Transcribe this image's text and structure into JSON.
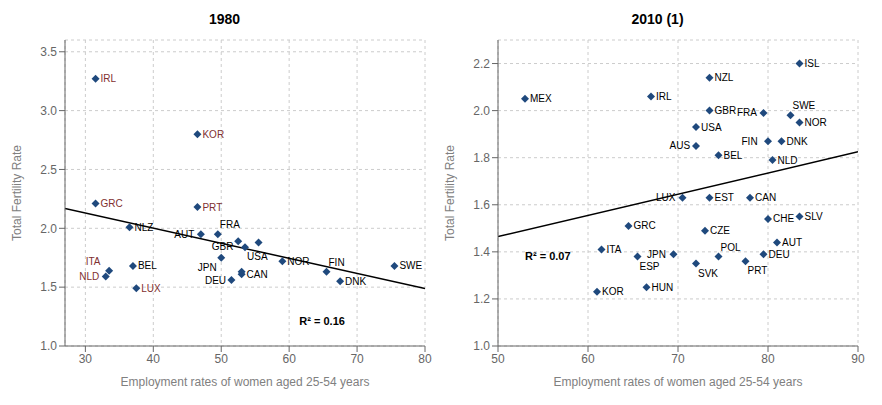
{
  "chart_data": [
    {
      "type": "scatter",
      "title": "1980",
      "x_label": "Employment rates of women aged 25-54 years",
      "y_label": "Total Fertility Rate",
      "xlim": [
        27,
        80
      ],
      "ylim": [
        1.0,
        3.6
      ],
      "xticks": [
        30,
        40,
        50,
        60,
        70,
        80
      ],
      "yticks": [
        {
          "value": 1.0,
          "label": "1.0"
        },
        1.5,
        {
          "value": 2.0,
          "label": "2.0"
        },
        2.5,
        {
          "value": 3.0,
          "label": "3.0"
        },
        3.5
      ],
      "grid": true,
      "color": "#1f497d",
      "marker": "diamond",
      "x": [
        31.5,
        46.5,
        31.5,
        36.5,
        46.5,
        37.0,
        33.5,
        33.0,
        37.5,
        47.0,
        49.5,
        52.5,
        53.5,
        50.0,
        53.0,
        51.5,
        59.0,
        65.5,
        67.5,
        75.5,
        55.5,
        53.0
      ],
      "values": [
        3.27,
        2.8,
        2.21,
        2.01,
        2.18,
        1.68,
        1.64,
        1.59,
        1.49,
        1.95,
        1.95,
        1.89,
        1.84,
        1.75,
        1.61,
        1.56,
        1.72,
        1.63,
        1.55,
        1.68,
        1.88,
        1.63
      ],
      "point_labels": [
        "IRL",
        "KOR",
        "GRC",
        "NLZ",
        "PRT",
        "BEL",
        "ITA",
        "NLD",
        "LUX",
        "AUT",
        "FRA",
        "GBR",
        "USA",
        "JPN",
        "CAN",
        "DEU",
        "NOR",
        "FIN",
        "DNK",
        "SWE",
        null,
        null
      ],
      "label_colors": [
        "#7f3030",
        "#7f3030",
        "#7f3030",
        "#000000",
        "#7f3030",
        "#000000",
        "#7f3030",
        "#7f3030",
        "#7f3030",
        "#000000",
        "#000000",
        "#000000",
        "#000000",
        "#000000",
        "#000000",
        "#000000",
        "#000000",
        "#000000",
        "#000000",
        "#000000",
        null,
        null
      ],
      "trend_line": {
        "x": [
          27,
          80
        ],
        "values": [
          2.1675,
          1.4891
        ],
        "color": "#000000"
      },
      "annotations": [
        {
          "text": "R² = 0.16",
          "x": 61.5,
          "y": 1.18
        }
      ]
    },
    {
      "type": "scatter",
      "title": "2010 (1)",
      "x_label": "Employment rates of women aged 25-54 years",
      "y_label": "Total Fertility Rate",
      "xlim": [
        50,
        90
      ],
      "ylim": [
        1.0,
        2.3
      ],
      "xticks": [
        50,
        60,
        70,
        80,
        90
      ],
      "yticks": [
        {
          "value": 1.0,
          "label": "1.0"
        },
        1.2,
        1.4,
        1.6,
        1.8,
        {
          "value": 2.0,
          "label": "2.0"
        },
        2.2
      ],
      "grid": true,
      "color": "#1f497d",
      "marker": "diamond",
      "x": [
        83.5,
        53.0,
        73.5,
        67.0,
        73.5,
        79.5,
        82.5,
        83.5,
        72.0,
        72.0,
        80.0,
        81.5,
        74.5,
        80.5,
        78.0,
        70.5,
        73.5,
        80.0,
        83.5,
        64.5,
        73.0,
        81.0,
        61.5,
        69.5,
        65.5,
        74.5,
        72.0,
        77.5,
        79.5,
        66.5,
        61.0
      ],
      "values": [
        2.2,
        2.05,
        2.14,
        2.06,
        2.0,
        1.99,
        1.98,
        1.95,
        1.93,
        1.85,
        1.87,
        1.87,
        1.81,
        1.79,
        1.63,
        1.63,
        1.63,
        1.54,
        1.55,
        1.51,
        1.49,
        1.44,
        1.41,
        1.39,
        1.38,
        1.38,
        1.35,
        1.36,
        1.39,
        1.25,
        1.23
      ],
      "point_labels": [
        "ISL",
        "MEX",
        "NZL",
        "IRL",
        "GBR",
        "FRA",
        "SWE",
        "NOR",
        "USA",
        "AUS",
        "FIN",
        "DNK",
        "BEL",
        "NLD",
        "CAN",
        "LUX",
        "EST",
        "CHE",
        "SLV",
        "GRC",
        "CZE",
        "AUT",
        "ITA",
        "JPN",
        "ESP",
        "POL",
        "SVK",
        "PRT",
        "DEU",
        "HUN",
        "KOR"
      ],
      "label_colors": [
        "#000000",
        "#000000",
        "#000000",
        "#000000",
        "#000000",
        "#000000",
        "#000000",
        "#000000",
        "#000000",
        "#000000",
        "#000000",
        "#000000",
        "#000000",
        "#000000",
        "#000000",
        "#000000",
        "#000000",
        "#000000",
        "#000000",
        "#000000",
        "#000000",
        "#000000",
        "#000000",
        "#000000",
        "#000000",
        "#000000",
        "#000000",
        "#000000",
        "#000000",
        "#000000",
        "#000000"
      ],
      "trend_line": {
        "x": [
          50,
          90
        ],
        "values": [
          1.4646,
          1.8249
        ],
        "color": "#000000"
      },
      "annotations": [
        {
          "text": "R² = 0.07",
          "x": 53.0,
          "y": 1.365
        }
      ]
    }
  ]
}
